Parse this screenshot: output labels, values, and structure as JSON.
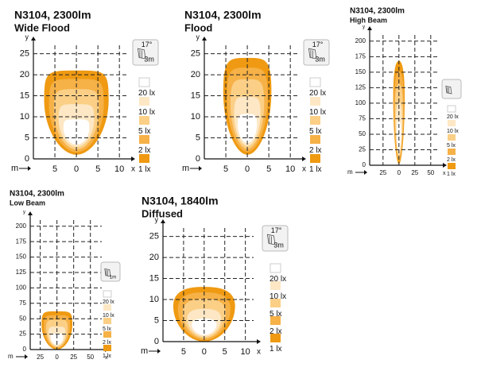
{
  "chart_data": [
    {
      "type": "isolux",
      "title": "N3104, 2300lm",
      "subtitle": "Wide Flood",
      "x_label": "x",
      "y_label": "y",
      "x_unit": "m",
      "xlim": [
        -10,
        12
      ],
      "ylim": [
        0,
        27
      ],
      "xticks": [
        {
          "value": -5,
          "label": "5"
        },
        0,
        5,
        10
      ],
      "yticks": [
        0,
        5,
        10,
        15,
        20,
        25
      ],
      "grid": true,
      "mount_angle": "17°",
      "mount_height": "3m",
      "series": [
        {
          "name": "20 lx",
          "color": "#ffffff"
        },
        {
          "name": "10 lx",
          "color": "#fde7c4"
        },
        {
          "name": "5 lx",
          "color": "#fbcf86"
        },
        {
          "name": "2 lx",
          "color": "#f6b147"
        },
        {
          "name": "1 lx",
          "color": "#ef9a12"
        }
      ]
    },
    {
      "type": "isolux",
      "title": "N3104, 2300lm",
      "subtitle": "Flood",
      "x_label": "x",
      "y_label": "y",
      "x_unit": "m",
      "xlim": [
        -10,
        12
      ],
      "ylim": [
        0,
        27
      ],
      "xticks": [
        {
          "value": -5,
          "label": "5"
        },
        0,
        5,
        10
      ],
      "yticks": [
        0,
        5,
        10,
        15,
        20,
        25
      ],
      "grid": true,
      "mount_angle": "17°",
      "mount_height": "3m",
      "series": [
        {
          "name": "20 lx",
          "color": "#ffffff"
        },
        {
          "name": "10 lx",
          "color": "#fde7c4"
        },
        {
          "name": "5 lx",
          "color": "#fbcf86"
        },
        {
          "name": "2 lx",
          "color": "#f6b147"
        },
        {
          "name": "1 lx",
          "color": "#ef9a12"
        }
      ]
    },
    {
      "type": "isolux",
      "title": "N3104, 2300lm",
      "subtitle": "High Beam",
      "x_label": "x",
      "y_label": "y",
      "x_unit": "m",
      "xlim": [
        -46,
        64
      ],
      "ylim": [
        0,
        210
      ],
      "xticks": [
        {
          "value": -25,
          "label": "25"
        },
        0,
        25,
        50
      ],
      "yticks": [
        0,
        25,
        50,
        75,
        100,
        125,
        150,
        175,
        200
      ],
      "grid": true,
      "series": [
        {
          "name": "20 lx",
          "color": "#ffffff"
        },
        {
          "name": "10 lx",
          "color": "#fde7c4"
        },
        {
          "name": "5 lx",
          "color": "#fbcf86"
        },
        {
          "name": "2 lx",
          "color": "#f6b147"
        },
        {
          "name": "1 lx",
          "color": "#ef9a12"
        }
      ]
    },
    {
      "type": "isolux",
      "title": "N3104, 2300lm",
      "subtitle": "Low Beam",
      "x_label": "x",
      "y_label": "y",
      "x_unit": "m",
      "xlim": [
        -40,
        67
      ],
      "ylim": [
        0,
        210
      ],
      "xticks": [
        {
          "value": -25,
          "label": "25"
        },
        0,
        25,
        50
      ],
      "yticks": [
        0,
        25,
        50,
        75,
        100,
        125,
        150,
        175,
        200
      ],
      "grid": true,
      "mount_height": "1m",
      "series": [
        {
          "name": "20 lx",
          "color": "#ffffff"
        },
        {
          "name": "10 lx",
          "color": "#fde7c4"
        },
        {
          "name": "5 lx",
          "color": "#fbcf86"
        },
        {
          "name": "2 lx",
          "color": "#f6b147"
        },
        {
          "name": "1 lx",
          "color": "#ef9a12"
        }
      ]
    },
    {
      "type": "isolux",
      "title": "N3104, 1840lm",
      "subtitle": "Diffused",
      "x_label": "x",
      "y_label": "y",
      "x_unit": "m",
      "xlim": [
        -10,
        12
      ],
      "ylim": [
        0,
        27
      ],
      "xticks": [
        {
          "value": -5,
          "label": "5"
        },
        0,
        5,
        10
      ],
      "yticks": [
        0,
        5,
        10,
        15,
        20,
        25
      ],
      "grid": true,
      "mount_angle": "17°",
      "mount_height": "3m",
      "series": [
        {
          "name": "20 lx",
          "color": "#ffffff"
        },
        {
          "name": "10 lx",
          "color": "#fde7c4"
        },
        {
          "name": "5 lx",
          "color": "#fbcf86"
        },
        {
          "name": "2 lx",
          "color": "#f6b147"
        },
        {
          "name": "1 lx",
          "color": "#ef9a12"
        }
      ]
    }
  ]
}
